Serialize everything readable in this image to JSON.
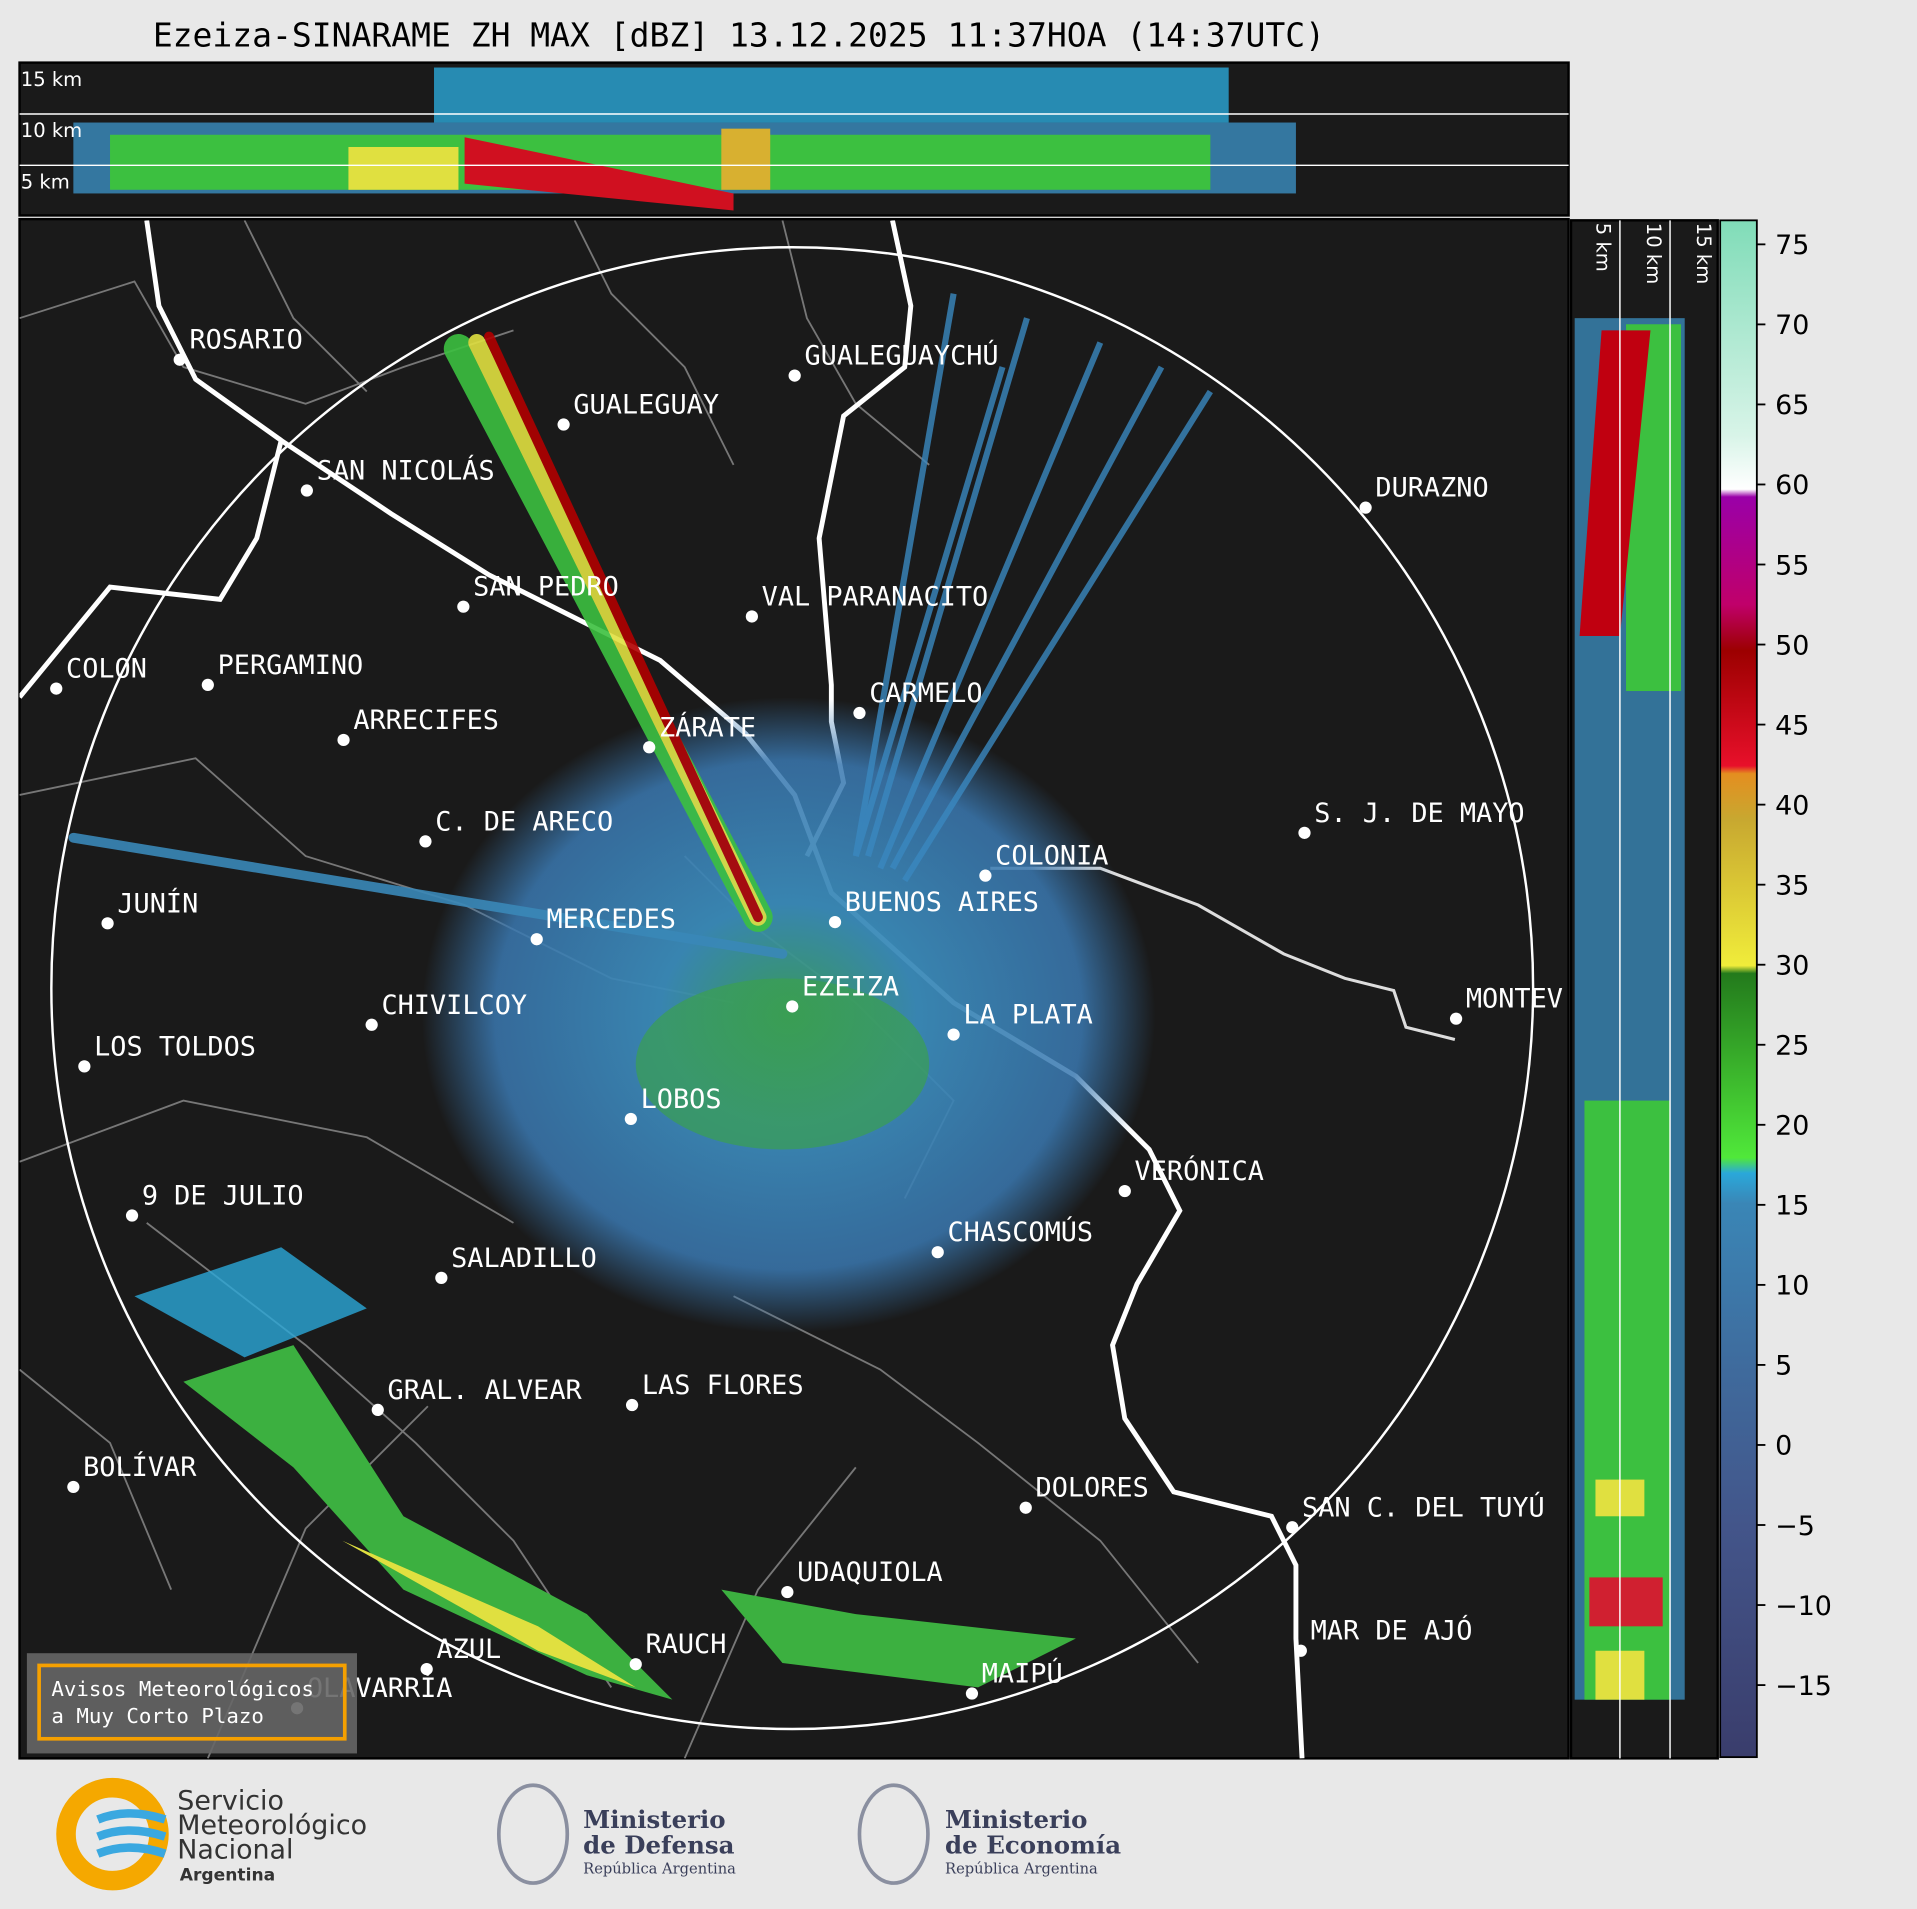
{
  "title": "Ezeiza-SINARAME ZH MAX [dBZ] 13.12.2025 11:37HOA (14:37UTC)",
  "top_panel": {
    "height_labels": [
      "15 km",
      "10 km",
      "5 km"
    ]
  },
  "side_panel": {
    "height_labels": [
      "5 km",
      "10 km",
      "15 km"
    ]
  },
  "cities": [
    "ROSARIO",
    "GUALEGUAYCHÚ",
    "GUALEGUAY",
    "SAN NICOLÁS",
    "DURAZNO",
    "SAN PEDRO",
    "VAL PARANACITO",
    "COLON",
    "PERGAMINO",
    "CARMELO",
    "ARRECIFES",
    "ZÁRATE",
    "S. J. DE MAYO",
    "C. DE ARECO",
    "COLONIA",
    "BUENOS AIRES",
    "JUNÍN",
    "MERCEDES",
    "MONTEV",
    "EZEIZA",
    "CHIVILCOY",
    "LA PLATA",
    "LOS TOLDOS",
    "LOBOS",
    "VERÓNICA",
    "9 DE JULIO",
    "CHASCOMÚS",
    "SALADILLO",
    "GRAL. ALVEAR",
    "LAS FLORES",
    "BOLÍVAR",
    "DOLORES",
    "SAN C. DEL TUYÚ",
    "UDAQUIOLA",
    "MAR DE AJÓ",
    "AZUL",
    "RAUCH",
    "MAIPÚ",
    "OLAVARRÍA"
  ],
  "colorbar": {
    "lim": [
      -19.5,
      76.5
    ],
    "ticks": [
      {
        "value": -15,
        "label": "−15"
      },
      {
        "value": -10,
        "label": "−10"
      },
      {
        "value": -5,
        "label": "−5"
      },
      0,
      5,
      10,
      15,
      20,
      25,
      30,
      35,
      40,
      45,
      50,
      55,
      60,
      65,
      70,
      75
    ]
  },
  "notice": [
    "Avisos Meteorológicos",
    "a Muy Corto Plazo"
  ],
  "logos": {
    "smn": [
      "Servicio",
      "Meteorológico",
      "Nacional",
      "Argentina"
    ],
    "defensa": [
      "Ministerio",
      "de Defensa",
      "República Argentina"
    ],
    "economia": [
      "Ministerio",
      "de Economía",
      "República Argentina"
    ]
  }
}
